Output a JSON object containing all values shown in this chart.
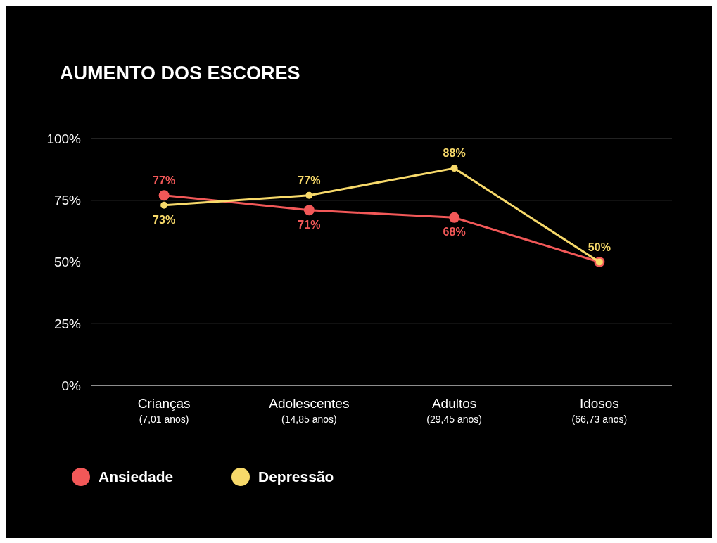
{
  "chart_data": {
    "type": "line",
    "title": "AUMENTO DOS ESCORES",
    "categories": [
      "Crianças\n(7,01 anos)",
      "Adolescentes\n(14,85 anos)",
      "Adultos\n(29,45 anos)",
      "Idosos\n(66,73 anos)"
    ],
    "series": [
      {
        "name": "Ansiedade",
        "color": "#f25858",
        "values": [
          77,
          71,
          68,
          50
        ],
        "value_labels": [
          "77%",
          "71%",
          "68%",
          null
        ]
      },
      {
        "name": "Depressão",
        "color": "#f7d96a",
        "values": [
          73,
          77,
          88,
          50
        ],
        "value_labels": [
          "73%",
          "77%",
          "88%",
          "50%"
        ]
      }
    ],
    "ylim": [
      0,
      100
    ],
    "yticks": [
      {
        "value": 0,
        "label": "0%"
      },
      {
        "value": 25,
        "label": "25%"
      },
      {
        "value": 50,
        "label": "50%"
      },
      {
        "value": 75,
        "label": "75%"
      },
      {
        "value": 100,
        "label": "100%"
      }
    ],
    "grid": "y",
    "legend": "bottom left",
    "marker": "circle",
    "line_style": "solid"
  }
}
